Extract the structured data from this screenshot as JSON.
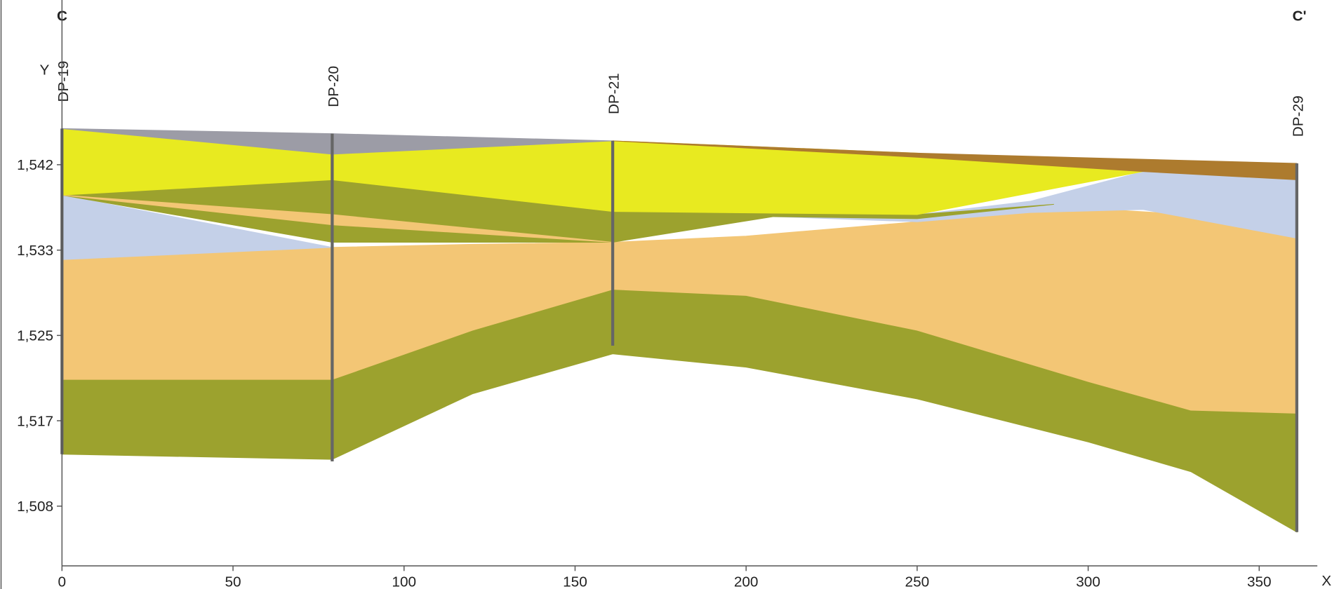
{
  "chart_data": {
    "type": "cross-section",
    "title_left": "C",
    "title_right": "C'",
    "ylabel": "Y",
    "xlabel": "X",
    "xlim": [
      0,
      367
    ],
    "xticks": [
      0,
      50,
      100,
      150,
      200,
      250,
      300,
      350
    ],
    "ylim": [
      1502.5,
      1557
    ],
    "yticks": [
      {
        "value": 1508.33,
        "label": "1,508"
      },
      {
        "value": 1516.67,
        "label": "1,517"
      },
      {
        "value": 1525,
        "label": "1,525"
      },
      {
        "value": 1533.33,
        "label": "1,533"
      },
      {
        "value": 1541.67,
        "label": "1,542"
      }
    ],
    "layers": [
      {
        "color": "#9ca22e",
        "x": [
          0,
          79,
          120,
          161,
          200,
          250,
          300,
          330,
          361
        ],
        "top": [
          1520.7,
          1520.7,
          1525.5,
          1529.5,
          1528.9,
          1525.5,
          1520.5,
          1517.7,
          1517.4
        ],
        "bottom": [
          1513.4,
          1512.9,
          1519.3,
          1523.2,
          1521.9,
          1518.8,
          1514.6,
          1511.7,
          1505.8
        ]
      },
      {
        "color": "#f3c675",
        "x": [
          0,
          79,
          120,
          161,
          200,
          250,
          300,
          330,
          361
        ],
        "top": [
          1532.4,
          1533.6,
          1533.9,
          1534.1,
          1534.7,
          1536.1,
          1537.4,
          1536.8,
          1534.5
        ],
        "bottom": [
          1520.7,
          1520.7,
          1525.5,
          1529.5,
          1528.9,
          1525.5,
          1520.5,
          1517.7,
          1517.4
        ]
      },
      {
        "color": "#c4d0e8",
        "x": [
          0,
          79
        ],
        "top": [
          1538.7,
          1533.6
        ],
        "bottom": [
          1532.4,
          1533.6
        ]
      },
      {
        "color": "#c4d0e8",
        "x": [
          208,
          250,
          283,
          316,
          361
        ],
        "top": [
          1536.6,
          1536.8,
          1538.1,
          1541.0,
          1540.2
        ],
        "bottom": [
          1536.6,
          1536.1,
          1537.0,
          1537.3,
          1534.5
        ]
      },
      {
        "color": "#9ca22e",
        "x": [
          0,
          79,
          161,
          208,
          250,
          290
        ],
        "top": [
          1538.7,
          1540.2,
          1537.1,
          1536.9,
          1536.8,
          1537.8
        ],
        "bottom": [
          1538.7,
          1534.1,
          1534.1,
          1536.6,
          1536.4,
          1537.8
        ]
      },
      {
        "color": "#f3c675",
        "x": [
          0,
          79,
          161
        ],
        "top": [
          1538.7,
          1536.8,
          1534.1
        ],
        "bottom": [
          1538.7,
          1535.8,
          1534.1
        ]
      },
      {
        "color": "#e8ea20",
        "x": [
          0,
          79,
          161,
          250,
          316
        ],
        "top": [
          1545.2,
          1542.7,
          1544.0,
          1542.8,
          1541.0
        ],
        "bottom": [
          1538.7,
          1540.2,
          1537.1,
          1536.8,
          1541.0
        ]
      },
      {
        "color": "#9c9ca6",
        "x": [
          0,
          79,
          161
        ],
        "top": [
          1545.2,
          1544.7,
          1544.0
        ],
        "bottom": [
          1545.2,
          1542.7,
          1544.0
        ]
      },
      {
        "color": "#ad7b2e",
        "x": [
          161,
          250,
          316,
          361
        ],
        "top": [
          1544.0,
          1542.8,
          1542.2,
          1541.8
        ],
        "bottom": [
          1544.0,
          1542.4,
          1541.0,
          1540.2
        ]
      }
    ],
    "boreholes": [
      {
        "name": "DP-19",
        "x": 0,
        "top": 1545.2,
        "bottom": 1513.4
      },
      {
        "name": "DP-20",
        "x": 79,
        "top": 1544.7,
        "bottom": 1512.7
      },
      {
        "name": "DP-21",
        "x": 161,
        "top": 1544.0,
        "bottom": 1524.0
      },
      {
        "name": "DP-29",
        "x": 361,
        "top": 1541.8,
        "bottom": 1505.8
      }
    ],
    "borehole_color": "#666666"
  }
}
